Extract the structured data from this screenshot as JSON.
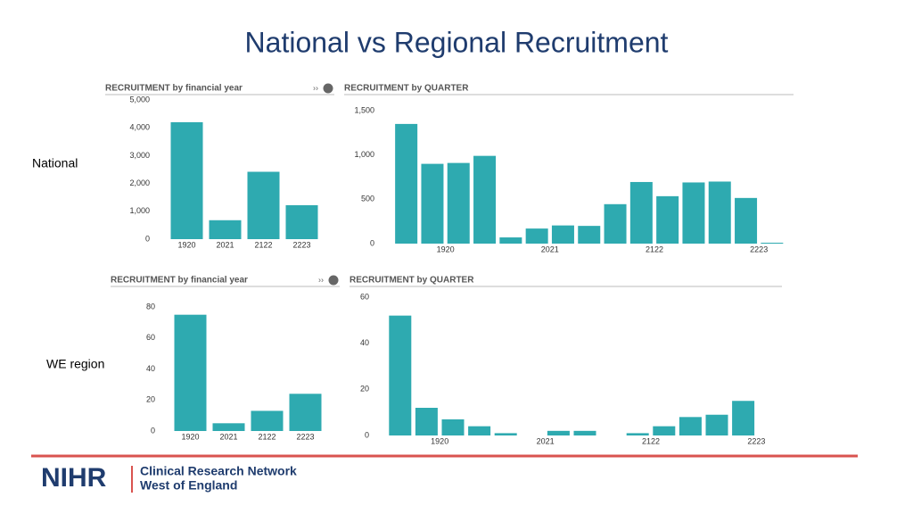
{
  "title": "National vs Regional Recruitment",
  "row_labels": [
    "National",
    "WE region"
  ],
  "logo": {
    "mark": "NIHR",
    "line1": "Clinical Research Network",
    "line2": "West of England"
  },
  "chart_data": [
    {
      "type": "bar",
      "title": "RECRUITMENT by financial year",
      "color": "#2eaab0",
      "categories": [
        "1920",
        "2021",
        "2122",
        "2223"
      ],
      "values": [
        4200,
        680,
        2420,
        1220
      ],
      "ylim": [
        0,
        5000
      ],
      "yticks": [
        0,
        {
          "value": 1000,
          "label": "1,000"
        },
        {
          "value": 2000,
          "label": "2,000"
        },
        {
          "value": 3000,
          "label": "3,000"
        },
        {
          "value": 4000,
          "label": "4,000"
        },
        {
          "value": 5000,
          "label": "5,000"
        }
      ]
    },
    {
      "type": "bar",
      "title": "RECRUITMENT by QUARTER",
      "color": "#2eaab0",
      "categories": [
        null,
        "1920",
        null,
        null,
        null,
        "2021",
        null,
        null,
        null,
        "2122",
        null,
        null,
        null,
        "2223",
        null
      ],
      "values": [
        1350,
        900,
        910,
        990,
        70,
        170,
        205,
        200,
        445,
        695,
        535,
        690,
        700,
        515,
        10
      ],
      "ylim": [
        0,
        1500
      ],
      "yticks": [
        0,
        500,
        {
          "value": 1000,
          "label": "1,000"
        },
        {
          "value": 1500,
          "label": "1,500"
        }
      ]
    },
    {
      "type": "bar",
      "title": "RECRUITMENT by financial year",
      "color": "#2eaab0",
      "categories": [
        "1920",
        "2021",
        "2122",
        "2223"
      ],
      "values": [
        75,
        5,
        13,
        24
      ],
      "ylim": [
        0,
        80
      ],
      "yticks": [
        0,
        20,
        40,
        60,
        80
      ]
    },
    {
      "type": "bar",
      "title": "RECRUITMENT by QUARTER",
      "color": "#2eaab0",
      "categories": [
        null,
        "1920",
        null,
        null,
        null,
        "2021",
        null,
        null,
        null,
        "2122",
        null,
        null,
        null,
        "2223",
        null
      ],
      "values": [
        52,
        12,
        7,
        4,
        1,
        0,
        2,
        2,
        0,
        1,
        4,
        8,
        9,
        15,
        0
      ],
      "ylim": [
        0,
        60
      ],
      "yticks": [
        0,
        20,
        40,
        60
      ]
    }
  ]
}
